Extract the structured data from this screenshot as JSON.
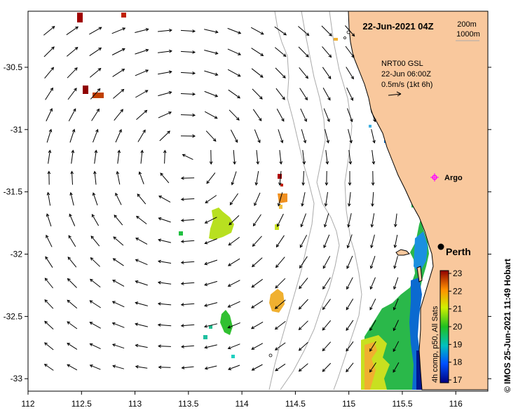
{
  "map": {
    "title": "22-Jun-2021 04Z",
    "depth_legend": [
      "200m",
      "1000m"
    ],
    "current_label": {
      "line1": "NRT00 GSL",
      "line2": "22-Jun 06:00Z",
      "line3": "0.5m/s (1kt 6h)"
    },
    "argo_label": "Argo",
    "city_label": "Perth",
    "credit": "© IMOS 25-Jun-2021 11:49 Hobart",
    "colorbar": {
      "caption": "4h comp, p50, All Sats",
      "ticks": [
        "23",
        "22",
        "21",
        "20",
        "19",
        "18",
        "17"
      ],
      "min": 17,
      "max": 23
    },
    "x_ticks": [
      "112",
      "112.5",
      "113",
      "113.5",
      "114",
      "114.5",
      "115",
      "115.5",
      "116"
    ],
    "y_ticks": [
      "-30.5",
      "-31",
      "-31.5",
      "-32",
      "-32.5",
      "-33"
    ],
    "lon_range": [
      112,
      116.3
    ],
    "lat_range": [
      -33.1,
      -30.05
    ],
    "colors": {
      "land": "#f9c89d",
      "ocean": "#ffffff",
      "isobath": "#aaaaaa"
    }
  }
}
